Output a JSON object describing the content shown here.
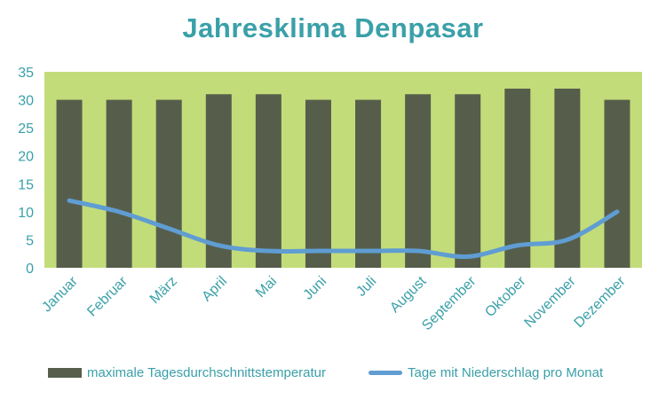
{
  "title": "Jahresklima Denpasar",
  "colors": {
    "plot_background": "#c3dc7a",
    "bar": "#565e4b",
    "line": "#5f9dd2",
    "text": "#3aa0a8"
  },
  "chart_data": {
    "type": "bar",
    "title": "Jahresklima Denpasar",
    "categories": [
      "Januar",
      "Februar",
      "März",
      "April",
      "Mai",
      "Juni",
      "Juli",
      "August",
      "September",
      "Oktober",
      "November",
      "Dezember"
    ],
    "series": [
      {
        "name": "maximale Tagesdurchschnittstemperatur",
        "type": "bar",
        "values": [
          30,
          30,
          30,
          31,
          31,
          30,
          30,
          31,
          31,
          32,
          32,
          30
        ]
      },
      {
        "name": "Tage mit Niederschlag pro Monat",
        "type": "line",
        "values": [
          12,
          10,
          7,
          4,
          3,
          3,
          3,
          3,
          2,
          4,
          5,
          10
        ]
      }
    ],
    "yticks": [
      "0",
      "5",
      "10",
      "15",
      "20",
      "25",
      "30",
      "35"
    ],
    "ylim": [
      0,
      35
    ],
    "grid": false,
    "legend_position": "bottom"
  }
}
